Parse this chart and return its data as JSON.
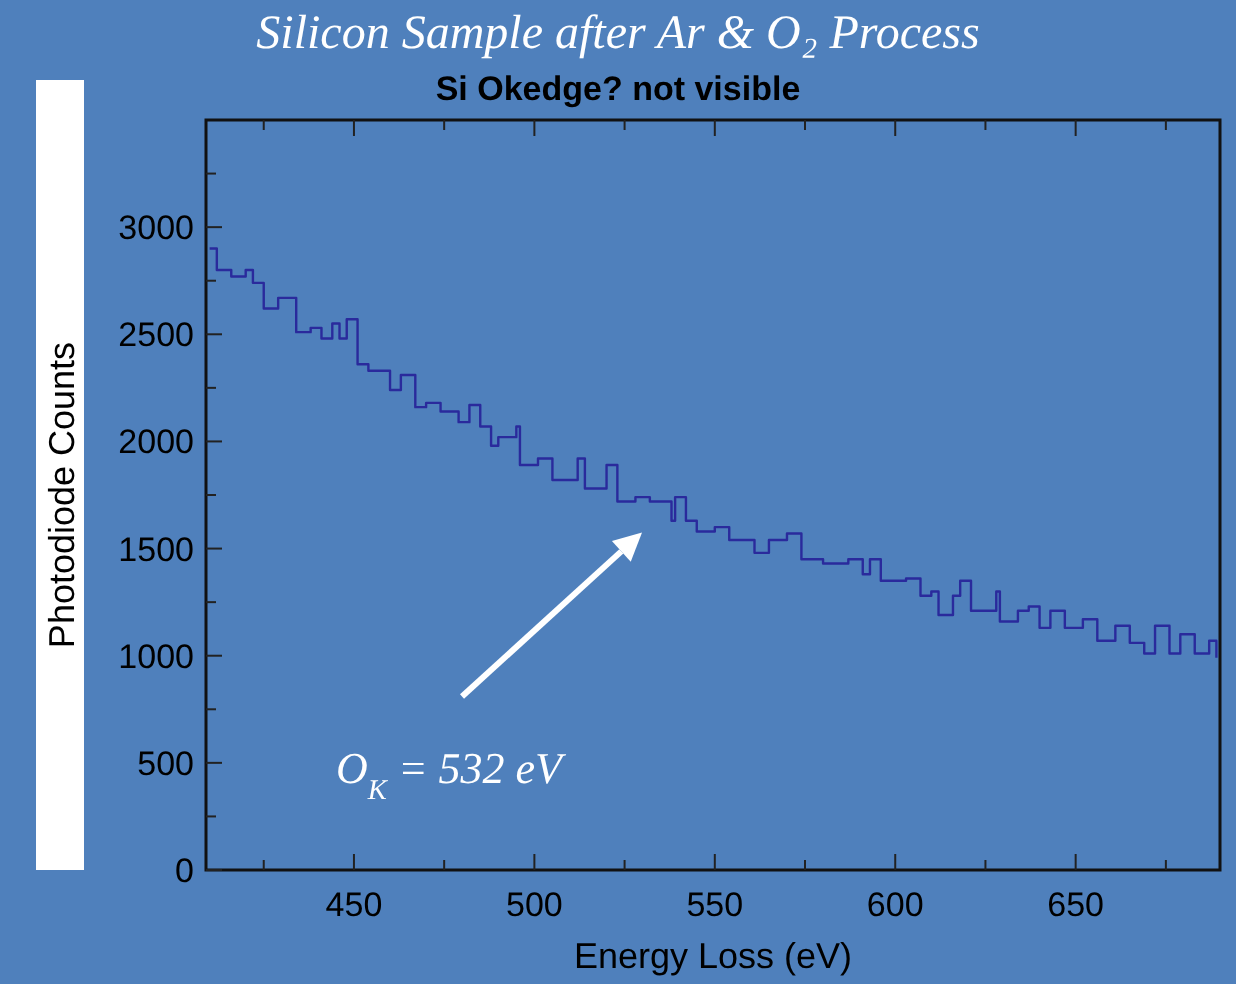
{
  "chart_data": {
    "type": "step",
    "title": "Silicon Sample after Ar & O₂ Process",
    "subtitle": "Si Okedge? not visible",
    "xlabel": "Energy Loss (eV)",
    "ylabel": "Photodiode Counts",
    "annotations": [
      "O$_{K}$ = 532 eV"
    ],
    "x": [
      410,
      412,
      416,
      420,
      422,
      425,
      429,
      434,
      438,
      441,
      444,
      446,
      448,
      451,
      454,
      460,
      463,
      467,
      470,
      474,
      479,
      482,
      485,
      488,
      490,
      495,
      496,
      501,
      505,
      512,
      514,
      520,
      523,
      528,
      532,
      538,
      539,
      542,
      545,
      550,
      554,
      558,
      561,
      565,
      570,
      574,
      580,
      585,
      587,
      591,
      593,
      596,
      603,
      607,
      610,
      612,
      616,
      618,
      621,
      625,
      628,
      629,
      634,
      637,
      640,
      643,
      647,
      652,
      656,
      661,
      665,
      669,
      672,
      676,
      679,
      683,
      687,
      689
    ],
    "series": [
      {
        "color": "#2a2a9c",
        "values": [
          2900,
          2800,
          2770,
          2800,
          2740,
          2620,
          2670,
          2510,
          2530,
          2480,
          2550,
          2480,
          2570,
          2360,
          2330,
          2240,
          2310,
          2160,
          2180,
          2140,
          2090,
          2170,
          2070,
          1980,
          2020,
          2070,
          1890,
          1920,
          1820,
          1920,
          1780,
          1890,
          1720,
          1740,
          1720,
          1630,
          1740,
          1630,
          1580,
          1600,
          1540,
          1540,
          1480,
          1540,
          1570,
          1450,
          1430,
          1430,
          1450,
          1380,
          1450,
          1350,
          1360,
          1280,
          1300,
          1190,
          1280,
          1350,
          1210,
          1210,
          1300,
          1160,
          1210,
          1230,
          1130,
          1210,
          1130,
          1170,
          1070,
          1140,
          1060,
          1010,
          1140,
          1010,
          1100,
          1010,
          1070,
          990
        ]
      }
    ],
    "xlim": [
      409,
      690
    ],
    "ylim": [
      0,
      3500
    ],
    "xticks": [
      {
        "value": 425,
        "label": null
      },
      450,
      {
        "value": 475,
        "label": null
      },
      500,
      {
        "value": 525,
        "label": null
      },
      550,
      {
        "value": 575,
        "label": null
      },
      600,
      {
        "value": 625,
        "label": null
      },
      650,
      {
        "value": 675,
        "label": null
      }
    ],
    "yticks": [
      0,
      {
        "value": 250,
        "label": null
      },
      500,
      {
        "value": 750,
        "label": null
      },
      1000,
      {
        "value": 1250,
        "label": null
      },
      1500,
      {
        "value": 1750,
        "label": null
      },
      2000,
      {
        "value": 2250,
        "label": null
      },
      2500,
      {
        "value": 2750,
        "label": null
      },
      3000,
      {
        "value": 3250,
        "label": null
      }
    ],
    "grid": false,
    "line_style": "solid",
    "marker": "none"
  }
}
